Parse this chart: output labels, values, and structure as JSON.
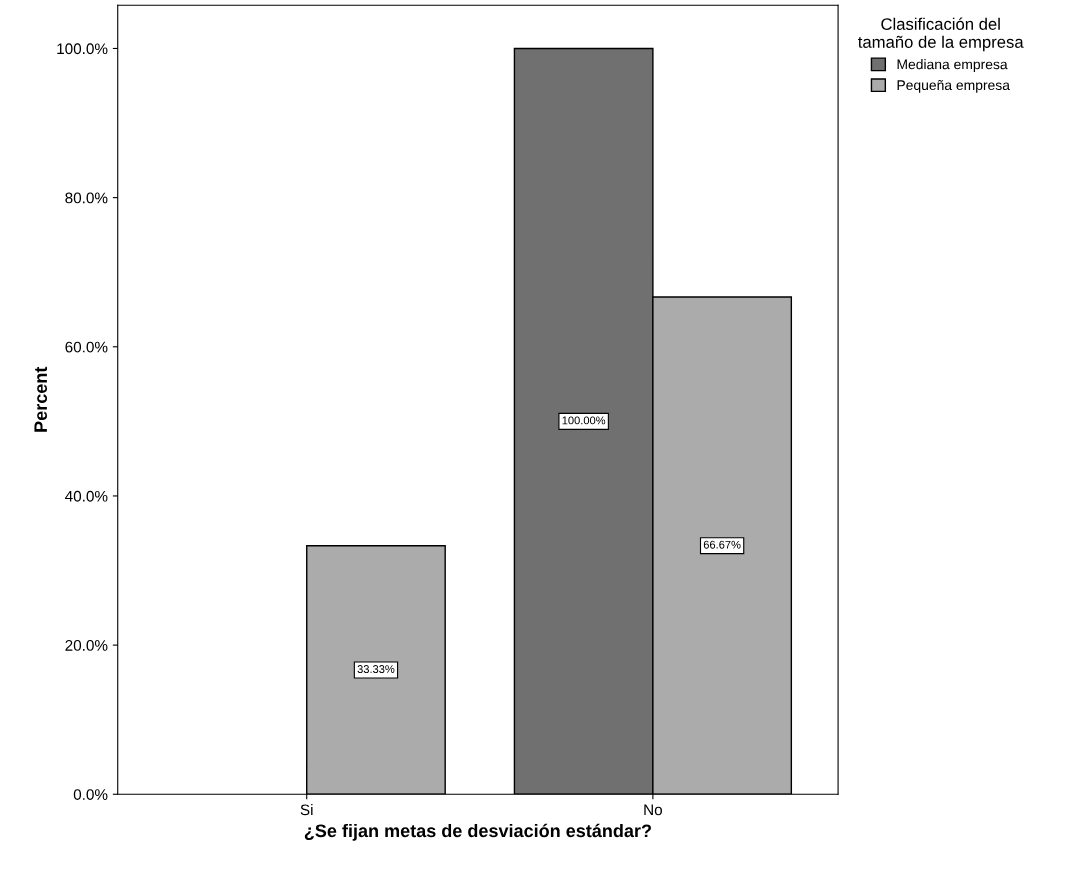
{
  "chart_data": {
    "type": "bar",
    "xlabel": "¿Se fijan metas de desviación estándar?",
    "ylabel": "Percent",
    "categories": [
      "Si",
      "No"
    ],
    "series": [
      {
        "name": "Mediana empresa",
        "color": "#707070",
        "values": [
          0,
          100
        ],
        "value_labels": [
          null,
          "100.00%"
        ]
      },
      {
        "name": "Pequeña empresa",
        "color": "#ababab",
        "values": [
          33.33,
          66.67
        ],
        "value_labels": [
          "33.33%",
          "66.67%"
        ]
      }
    ],
    "legend_title": "Clasificación del\ntamaño de la empresa",
    "legend": "top right",
    "ylim": [
      0,
      105.8
    ],
    "yticks": [
      {
        "value": 0,
        "label": "0.0%"
      },
      {
        "value": 20,
        "label": "20.0%"
      },
      {
        "value": 40,
        "label": "40.0%"
      },
      {
        "value": 60,
        "label": "60.0%"
      },
      {
        "value": 80,
        "label": "80.0%"
      },
      {
        "value": 100,
        "label": "100.0%"
      }
    ],
    "grid": false
  }
}
